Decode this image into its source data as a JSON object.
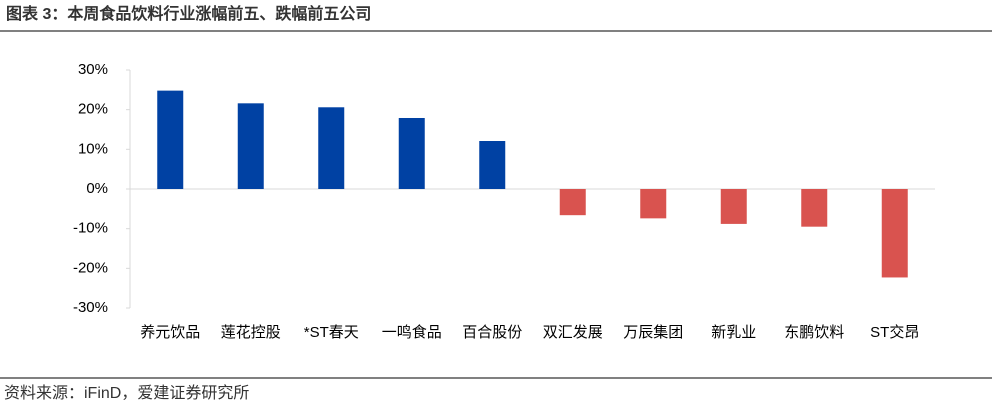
{
  "title": "图表 3：本周食品饮料行业涨幅前五、跌幅前五公司",
  "source": "资料来源：iFinD，爱建证券研究所",
  "chart_data": {
    "type": "bar",
    "categories": [
      "养元饮品",
      "莲花控股",
      "*ST春天",
      "一鸣食品",
      "百合股份",
      "双汇发展",
      "万辰集团",
      "新乳业",
      "东鹏饮料",
      "ST交昂"
    ],
    "values": [
      24.8,
      21.6,
      20.6,
      17.9,
      12.1,
      -6.6,
      -7.4,
      -8.8,
      -9.5,
      -22.3
    ],
    "positive_color": "#0041a3",
    "negative_color": "#d9534f",
    "ylim": [
      -30,
      30
    ],
    "yticks": [
      {
        "value": 30,
        "label": "30%"
      },
      {
        "value": 20,
        "label": "20%"
      },
      {
        "value": 10,
        "label": "10%"
      },
      {
        "value": 0,
        "label": "0%"
      },
      {
        "value": -10,
        "label": "-10%"
      },
      {
        "value": -20,
        "label": "-20%"
      },
      {
        "value": -30,
        "label": "-30%"
      }
    ],
    "grid": false
  }
}
